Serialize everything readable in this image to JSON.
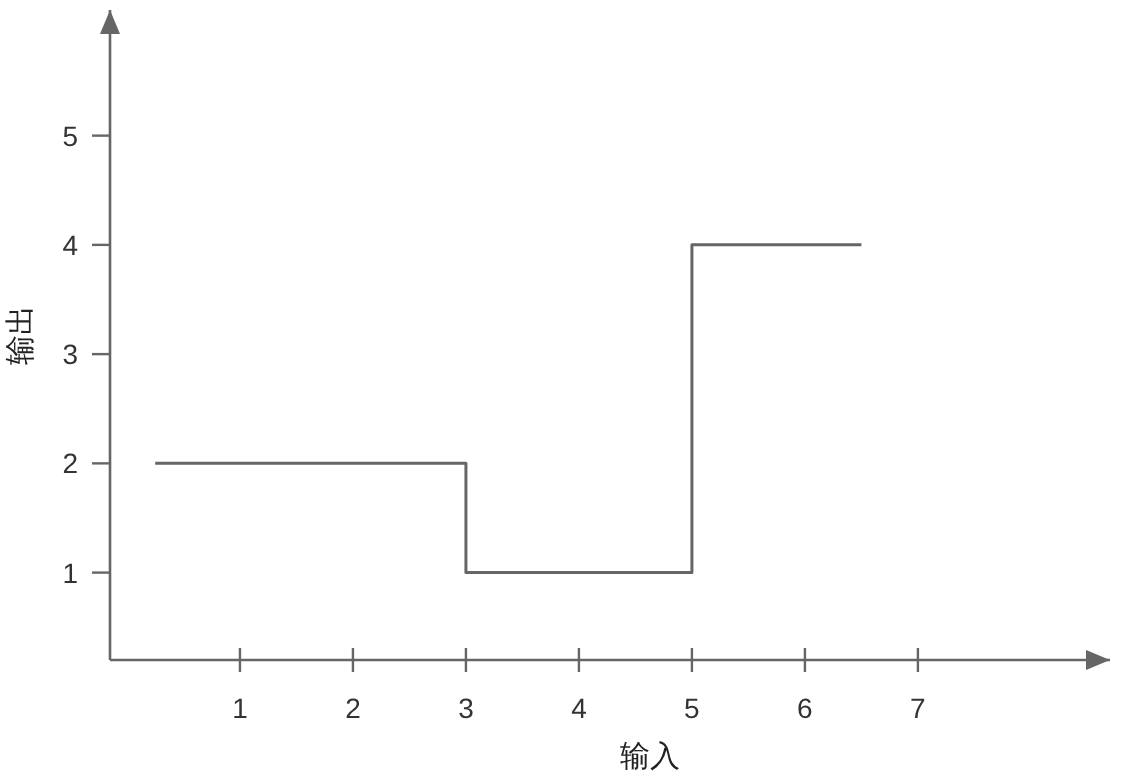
{
  "chart_data": {
    "type": "step",
    "xlabel": "输入",
    "ylabel": "输出",
    "x": [
      0.25,
      3,
      5,
      6.5
    ],
    "values": [
      2,
      1,
      4,
      4
    ],
    "color": "#666666",
    "xlim": [
      -0.15,
      8.7
    ],
    "ylim": [
      0.2,
      6.15
    ],
    "xticks": [
      1,
      2,
      3,
      4,
      5,
      6,
      7
    ],
    "yticks": [
      1,
      2,
      3,
      4,
      5
    ],
    "grid": false
  }
}
